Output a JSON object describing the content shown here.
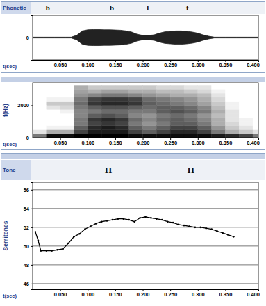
{
  "chart_data": [
    {
      "type": "area",
      "tier": {
        "name": "Phonetic",
        "labels": [
          {
            "x": 0.0275,
            "text": "b"
          },
          {
            "x": 0.144,
            "text": "ɓ"
          },
          {
            "x": 0.209,
            "text": "l"
          },
          {
            "x": 0.281,
            "text": "f"
          }
        ]
      },
      "xlabel": "t(sec)",
      "x": [
        0,
        0.01,
        0.02,
        0.03,
        0.04,
        0.05,
        0.06,
        0.07,
        0.08,
        0.09,
        0.1,
        0.11,
        0.12,
        0.13,
        0.14,
        0.15,
        0.16,
        0.17,
        0.18,
        0.19,
        0.2,
        0.21,
        0.22,
        0.23,
        0.24,
        0.25,
        0.26,
        0.27,
        0.28,
        0.29,
        0.3,
        0.31,
        0.32,
        0.33,
        0.34,
        0.35,
        0.36,
        0.37,
        0.38,
        0.39,
        0.4,
        0.41
      ],
      "upper": [
        0.02,
        0.02,
        0.02,
        0.02,
        0.02,
        0.02,
        0.02,
        0.02,
        0.1,
        0.3,
        0.35,
        0.36,
        0.36,
        0.35,
        0.35,
        0.34,
        0.33,
        0.3,
        0.25,
        0.15,
        0.1,
        0.1,
        0.12,
        0.2,
        0.26,
        0.28,
        0.3,
        0.3,
        0.28,
        0.25,
        0.2,
        0.12,
        0.06,
        0.02,
        0.02,
        0.02,
        0.02,
        0.02,
        0.02,
        0.02,
        0.02,
        0.02
      ],
      "lower": [
        -0.02,
        -0.02,
        -0.02,
        -0.02,
        -0.02,
        -0.02,
        -0.02,
        -0.02,
        -0.1,
        -0.3,
        -0.35,
        -0.36,
        -0.36,
        -0.35,
        -0.35,
        -0.34,
        -0.33,
        -0.3,
        -0.25,
        -0.15,
        -0.1,
        -0.1,
        -0.12,
        -0.2,
        -0.26,
        -0.28,
        -0.3,
        -0.3,
        -0.28,
        -0.25,
        -0.2,
        -0.12,
        -0.06,
        -0.02,
        -0.02,
        -0.02,
        -0.02,
        -0.02,
        -0.02,
        -0.02,
        -0.02,
        -0.02
      ],
      "color": "#222222",
      "grid": false,
      "xlim": [
        0,
        0.41
      ],
      "xticks": [
        {
          "value": 0.05,
          "label": "0.050"
        },
        {
          "value": 0.1,
          "label": "0.100"
        },
        {
          "value": 0.15,
          "label": "0.150"
        },
        {
          "value": 0.2,
          "label": "0.200"
        },
        {
          "value": 0.25,
          "label": "0.250"
        },
        {
          "value": 0.3,
          "label": "0.300"
        },
        {
          "value": 0.35,
          "label": "0.350"
        },
        {
          "value": 0.4,
          "label": "0.400"
        }
      ],
      "ylim": [
        -1,
        1
      ],
      "yticks": [
        0
      ]
    },
    {
      "type": "heatmap",
      "xlabel": "t(sec)",
      "ylabel": "f(Hz)",
      "x_bins": [
        0,
        0.025,
        0.05,
        0.075,
        0.1,
        0.125,
        0.15,
        0.175,
        0.2,
        0.225,
        0.25,
        0.275,
        0.3,
        0.325,
        0.35,
        0.375,
        0.4,
        0.425
      ],
      "y_bins": [
        0,
        250,
        500,
        750,
        1000,
        1250,
        1500,
        1750,
        2000,
        2250,
        2500,
        2750,
        3000,
        3250
      ],
      "cells": [
        [
          0.5,
          0.9,
          0.9,
          0.95,
          0.95,
          0.95,
          0.95,
          0.9,
          0.9,
          0.9,
          0.9,
          0.9,
          0.9,
          0.85,
          0.8,
          0.7,
          0.5
        ],
        [
          0.1,
          0.3,
          0.3,
          0.7,
          0.85,
          0.85,
          0.85,
          0.7,
          0.6,
          0.7,
          0.8,
          0.8,
          0.7,
          0.5,
          0.3,
          0.2,
          0.1
        ],
        [
          0,
          0.05,
          0.05,
          0.6,
          0.8,
          0.85,
          0.8,
          0.6,
          0.5,
          0.6,
          0.7,
          0.7,
          0.6,
          0.4,
          0.2,
          0.1,
          0
        ],
        [
          0,
          0,
          0,
          0.5,
          0.7,
          0.75,
          0.7,
          0.5,
          0.4,
          0.5,
          0.6,
          0.6,
          0.5,
          0.3,
          0.15,
          0.05,
          0
        ],
        [
          0,
          0,
          0,
          0.5,
          0.75,
          0.8,
          0.75,
          0.55,
          0.45,
          0.55,
          0.6,
          0.55,
          0.45,
          0.3,
          0.1,
          0.05,
          0
        ],
        [
          0,
          0,
          0,
          0.45,
          0.6,
          0.65,
          0.6,
          0.45,
          0.4,
          0.5,
          0.55,
          0.5,
          0.4,
          0.25,
          0.1,
          0,
          0
        ],
        [
          0,
          0,
          0.05,
          0.45,
          0.5,
          0.55,
          0.55,
          0.5,
          0.5,
          0.6,
          0.65,
          0.6,
          0.5,
          0.3,
          0.1,
          0,
          0
        ],
        [
          0,
          0.1,
          0.15,
          0.5,
          0.6,
          0.65,
          0.65,
          0.6,
          0.55,
          0.6,
          0.6,
          0.55,
          0.45,
          0.25,
          0.05,
          0,
          0
        ],
        [
          0,
          0.2,
          0.2,
          0.55,
          0.75,
          0.8,
          0.8,
          0.75,
          0.6,
          0.55,
          0.5,
          0.45,
          0.35,
          0.2,
          0.05,
          0,
          0
        ],
        [
          0,
          0.05,
          0.05,
          0.5,
          0.7,
          0.75,
          0.75,
          0.7,
          0.55,
          0.5,
          0.45,
          0.4,
          0.3,
          0.15,
          0,
          0,
          0
        ],
        [
          0,
          0,
          0,
          0.4,
          0.45,
          0.5,
          0.5,
          0.45,
          0.4,
          0.35,
          0.3,
          0.3,
          0.25,
          0.1,
          0,
          0,
          0
        ],
        [
          0,
          0,
          0,
          0.35,
          0.3,
          0.35,
          0.35,
          0.3,
          0.3,
          0.25,
          0.25,
          0.2,
          0.15,
          0.05,
          0,
          0,
          0
        ],
        [
          0,
          0,
          0,
          0.3,
          0.2,
          0.2,
          0.2,
          0.2,
          0.2,
          0.15,
          0.15,
          0.1,
          0.1,
          0,
          0,
          0,
          0
        ]
      ],
      "color": "#000000",
      "grid": false,
      "xlim": [
        0,
        0.41
      ],
      "xticks": [
        {
          "value": 0.05,
          "label": "0.050"
        },
        {
          "value": 0.1,
          "label": "0.100"
        },
        {
          "value": 0.15,
          "label": "0.150"
        },
        {
          "value": 0.2,
          "label": "0.200"
        },
        {
          "value": 0.25,
          "label": "0.250"
        },
        {
          "value": 0.3,
          "label": "0.300"
        },
        {
          "value": 0.35,
          "label": "0.350"
        },
        {
          "value": 0.4,
          "label": "0.400"
        }
      ],
      "ylim": [
        0,
        3400
      ],
      "yticks": [
        0,
        2000
      ]
    },
    {
      "type": "line",
      "tier": {
        "name": "Tone",
        "labels": [
          {
            "x": 0.1375,
            "text": "H"
          },
          {
            "x": 0.2875,
            "text": "H"
          }
        ]
      },
      "xlabel": "t(sec)",
      "ylabel": "Semitones",
      "x": [
        0.005,
        0.01,
        0.015,
        0.025,
        0.035,
        0.045,
        0.055,
        0.065,
        0.075,
        0.085,
        0.095,
        0.105,
        0.115,
        0.125,
        0.135,
        0.145,
        0.155,
        0.165,
        0.175,
        0.185,
        0.195,
        0.205,
        0.215,
        0.225,
        0.235,
        0.245,
        0.255,
        0.265,
        0.275,
        0.285,
        0.295,
        0.305,
        0.315,
        0.325,
        0.335,
        0.345,
        0.355,
        0.365
      ],
      "values": [
        51.5,
        50.6,
        49.5,
        49.5,
        49.5,
        49.6,
        49.7,
        50.3,
        51.0,
        51.3,
        51.8,
        52.1,
        52.4,
        52.6,
        52.7,
        52.8,
        52.9,
        52.9,
        52.8,
        52.6,
        53.0,
        53.1,
        53.0,
        52.9,
        52.8,
        52.6,
        52.5,
        52.3,
        52.2,
        52.1,
        52.0,
        52.0,
        51.9,
        51.8,
        51.6,
        51.4,
        51.2,
        51.0
      ],
      "color": "#000000",
      "marker": "dot",
      "grid": true,
      "xlim": [
        0,
        0.41
      ],
      "xticks": [
        {
          "value": 0.05,
          "label": "0.050"
        },
        {
          "value": 0.1,
          "label": "0.100"
        },
        {
          "value": 0.15,
          "label": "0.150"
        },
        {
          "value": 0.2,
          "label": "0.200"
        },
        {
          "value": 0.25,
          "label": "0.250"
        },
        {
          "value": 0.3,
          "label": "0.300"
        },
        {
          "value": 0.35,
          "label": "0.350"
        },
        {
          "value": 0.4,
          "label": "0.400"
        }
      ],
      "ylim": [
        45.4,
        56.8
      ],
      "yticks": [
        46,
        48,
        50,
        52,
        54,
        56
      ]
    }
  ]
}
